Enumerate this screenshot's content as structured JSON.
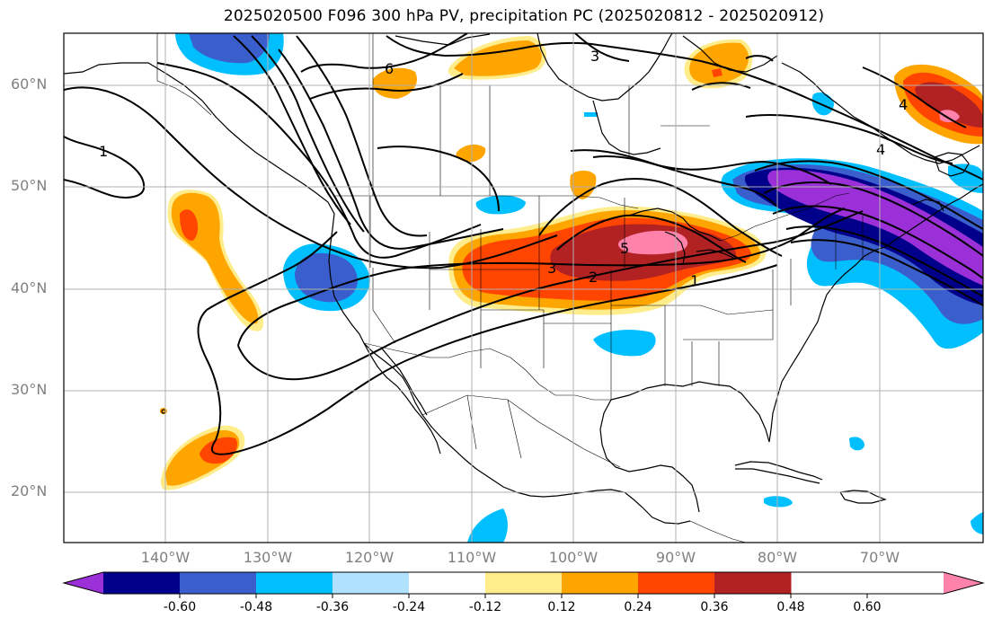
{
  "title": "2025020500 F096 300 hPa PV, precipitation PC (2025020812 - 2025020912)",
  "latitude_labels": [
    "60°N",
    "50°N",
    "40°N",
    "30°N",
    "20°N"
  ],
  "longitude_labels": [
    "140°W",
    "130°W",
    "120°W",
    "110°W",
    "100°W",
    "90°W",
    "80°W",
    "70°W"
  ],
  "contour_labels": [
    "1",
    "1",
    "2",
    "3",
    "4",
    "5",
    "6",
    "3",
    "4"
  ],
  "colorbar": {
    "tick_labels": [
      "-0.60",
      "-0.48",
      "-0.36",
      "-0.24",
      "-0.12",
      "0.12",
      "0.24",
      "0.36",
      "0.48",
      "0.60"
    ],
    "colors": [
      "#9b30d9",
      "#00008b",
      "#3a5fcd",
      "#00bfff",
      "#b0e2ff",
      "#ffffff",
      "#ffec8b",
      "#ffa500",
      "#ff4500",
      "#b22222",
      "#ff82ab"
    ]
  }
}
